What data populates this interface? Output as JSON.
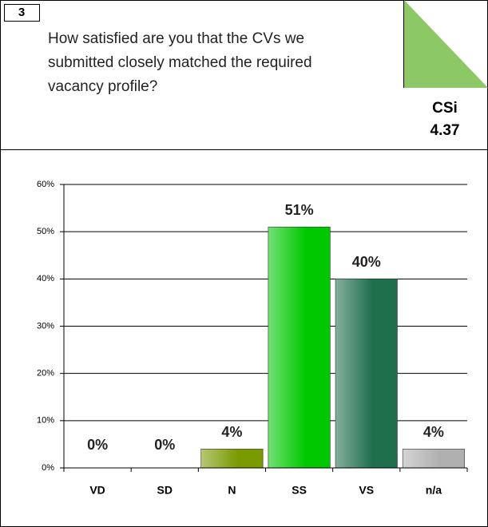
{
  "question_number": "3",
  "question": "How satisfied are you that the CVs we submitted closely matched the required vacancy profile?",
  "csi_label": "CSi",
  "csi_value": 4.37,
  "chart_data": {
    "type": "bar",
    "categories": [
      "VD",
      "SD",
      "N",
      "SS",
      "VS",
      "n/a"
    ],
    "values": [
      0,
      0,
      4,
      51,
      40,
      4
    ],
    "value_labels": [
      "0%",
      "0%",
      "4%",
      "51%",
      "40%",
      "4%"
    ],
    "colors": [
      "#6b8e00",
      "#6b8e00",
      "#7a9a00",
      "#00c800",
      "#1f6e4c",
      "#b0b0b0"
    ],
    "ylim": [
      0,
      60
    ],
    "yticks": [
      {
        "value": 0,
        "label": "0%"
      },
      {
        "value": 10,
        "label": "10%"
      },
      {
        "value": 20,
        "label": "20%"
      },
      {
        "value": 30,
        "label": "30%"
      },
      {
        "value": 40,
        "label": "40%"
      },
      {
        "value": 50,
        "label": "50%"
      },
      {
        "value": 60,
        "label": "60%"
      }
    ],
    "grid": true
  }
}
